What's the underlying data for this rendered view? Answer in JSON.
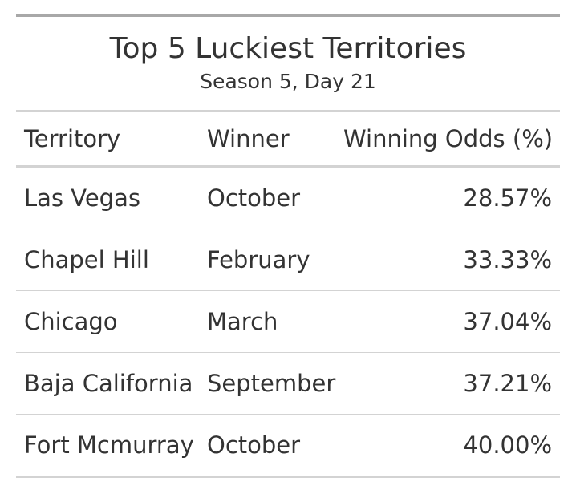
{
  "title": "Top 5 Luckiest Territories",
  "subtitle": "Season 5, Day 21",
  "columns": {
    "territory": "Territory",
    "winner": "Winner",
    "odds": "Winning Odds (%)"
  },
  "rows": [
    {
      "territory": "Las Vegas",
      "winner": "October",
      "odds": "28.57%"
    },
    {
      "territory": "Chapel Hill",
      "winner": "February",
      "odds": "33.33%"
    },
    {
      "territory": "Chicago",
      "winner": "March",
      "odds": "37.04%"
    },
    {
      "territory": "Baja California",
      "winner": "September",
      "odds": "37.21%"
    },
    {
      "territory": "Fort Mcmurray",
      "winner": "October",
      "odds": "40.00%"
    }
  ]
}
